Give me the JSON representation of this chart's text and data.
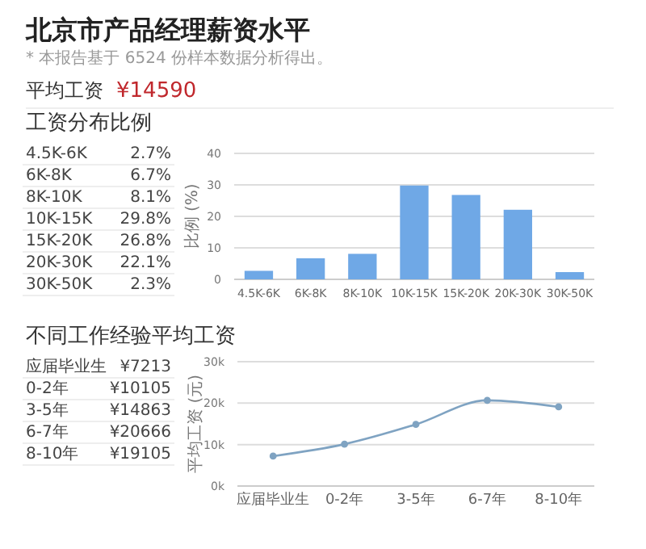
{
  "chart_data": [
    {
      "type": "other",
      "title": "北京市产品经理薪资水平",
      "subtitle": "* 本报告基于 6524 份样本数据分析得出。",
      "annotations": [
        "平均工资",
        "¥14590"
      ]
    },
    {
      "type": "other",
      "title": "工资分布比例",
      "annotations": [
        "4.5K-6K",
        "2.7%",
        "6K-8K",
        "6.7%",
        "8K-10K",
        "8.1%",
        "10K-15K",
        "29.8%",
        "15K-20K",
        "26.8%",
        "20K-30K",
        "22.1%",
        "30K-50K",
        "2.3%"
      ]
    },
    {
      "type": "bar",
      "ylabel": "比例 (%)",
      "categories": [
        "4.5K-6K",
        "6K-8K",
        "8K-10K",
        "10K-15K",
        "15K-20K",
        "20K-30K",
        "30K-50K"
      ],
      "values": [
        2.7,
        6.7,
        8.1,
        29.8,
        26.8,
        22.1,
        2.3
      ],
      "color": "#6fa8e6",
      "ylim": [
        0,
        40
      ],
      "yticks": [
        0,
        10,
        20,
        30,
        40
      ],
      "grid": "y"
    },
    {
      "type": "other",
      "title": "不同工作经验平均工资",
      "annotations": [
        "应届毕业生",
        "¥7213",
        "0-2年",
        "¥10105",
        "3-5年",
        "¥14863",
        "6-7年",
        "¥20666",
        "8-10年",
        "¥19105"
      ]
    },
    {
      "type": "line",
      "ylabel": "平均工资 (元)",
      "categories": [
        "应届毕业生",
        "0-2年",
        "3-5年",
        "6-7年",
        "8-10年"
      ],
      "values": [
        7213,
        10105,
        14863,
        20666,
        19105
      ],
      "color": "#7fa3c2",
      "marker": "circle",
      "ylim": [
        0,
        30000
      ],
      "yticks": [
        {
          "value": 0,
          "label": "0k"
        },
        {
          "value": 10000,
          "label": "10k"
        },
        {
          "value": 20000,
          "label": "20k"
        },
        {
          "value": 30000,
          "label": "30k"
        }
      ],
      "grid": "y"
    }
  ]
}
